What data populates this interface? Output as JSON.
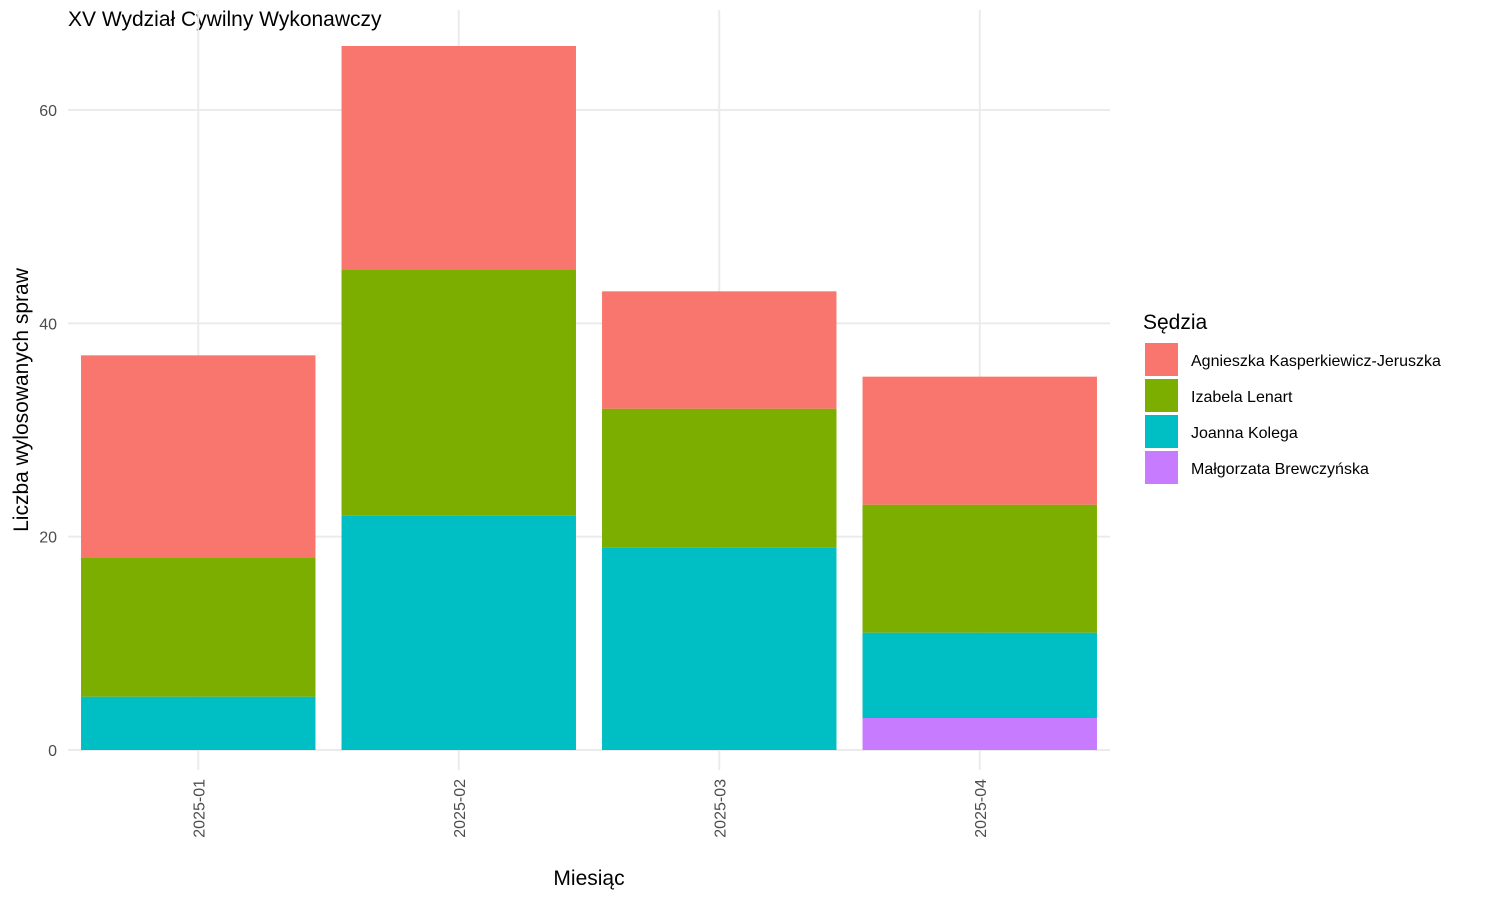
{
  "chart_data": {
    "type": "bar",
    "stacked": true,
    "title": "XV Wydział Cywilny Wykonawczy",
    "xlabel": "Miesiąc",
    "ylabel": "Liczba wylosowanych spraw",
    "categories": [
      "2025-01",
      "2025-02",
      "2025-03",
      "2025-04"
    ],
    "yticks": [
      0,
      20,
      40,
      60
    ],
    "ylim": [
      0,
      69
    ],
    "grid": true,
    "legend": {
      "title": "Sędzia",
      "position": "right"
    },
    "series": [
      {
        "name": "Agnieszka Kasperkiewicz-Jeruszka",
        "color": "#F8766D",
        "values": [
          19,
          21,
          11,
          12
        ]
      },
      {
        "name": "Izabela Lenart",
        "color": "#7CAE00",
        "values": [
          13,
          23,
          13,
          12
        ]
      },
      {
        "name": "Joanna Kolega",
        "color": "#00BFC4",
        "values": [
          5,
          22,
          19,
          8
        ]
      },
      {
        "name": "Małgorzata Brewczyńska",
        "color": "#C77CFF",
        "values": [
          0,
          0,
          0,
          3
        ]
      }
    ]
  }
}
